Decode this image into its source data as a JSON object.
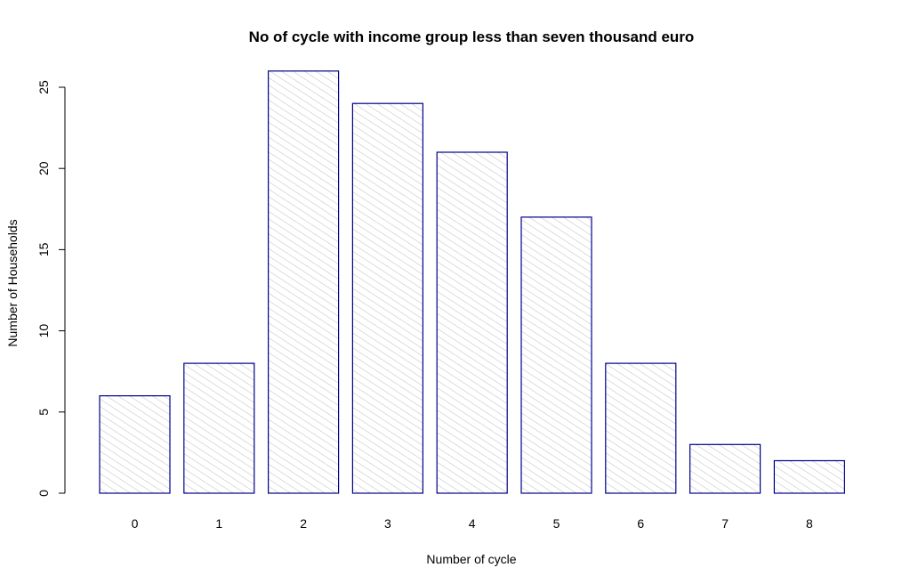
{
  "chart_data": {
    "type": "bar",
    "title": "No of cycle with income group less than seven thousand euro",
    "xlabel": "Number of cycle",
    "ylabel": "Number of Households",
    "categories": [
      "0",
      "1",
      "2",
      "3",
      "4",
      "5",
      "6",
      "7",
      "8"
    ],
    "values": [
      6,
      8,
      26,
      24,
      21,
      17,
      8,
      3,
      2
    ],
    "ylim": [
      0,
      26
    ],
    "yticks": [
      "0",
      "5",
      "10",
      "15",
      "20",
      "25"
    ],
    "grid": false,
    "legend": "none",
    "colors": {
      "bar_border": "#00008B",
      "hatch": "#b4b4b4",
      "background": "#ffffff"
    }
  }
}
